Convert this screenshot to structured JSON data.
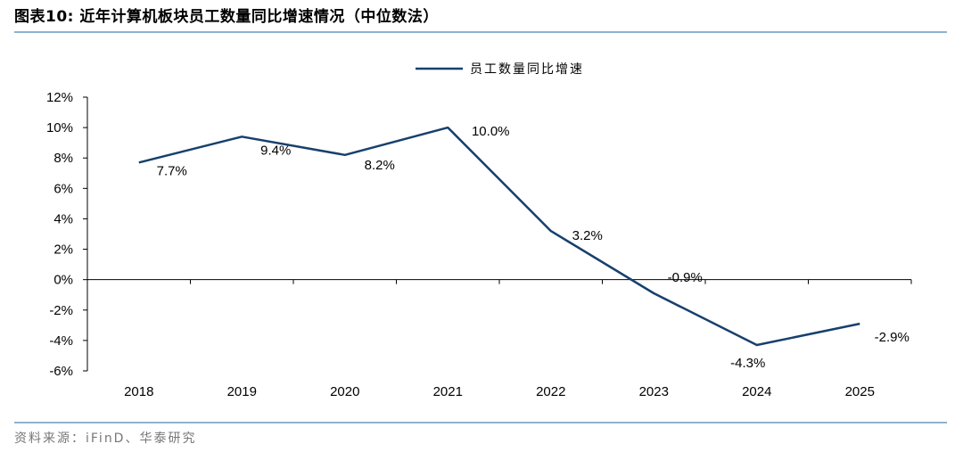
{
  "header": {
    "title": "图表10:  近年计算机板块员工数量同比增速情况（中位数法）"
  },
  "footer": {
    "source": "资料来源：iFinD、华泰研究"
  },
  "colors": {
    "line": "#17406d",
    "rule": "#8db3cf",
    "axis": "#000000"
  },
  "chart_data": {
    "type": "line",
    "title": "",
    "xlabel": "",
    "ylabel": "",
    "categories": [
      "2018",
      "2019",
      "2020",
      "2021",
      "2022",
      "2023",
      "2024",
      "2025"
    ],
    "series": [
      {
        "name": "员工数量同比增速",
        "values": [
          7.7,
          9.4,
          8.2,
          10.0,
          3.2,
          -0.9,
          -4.3,
          -2.9
        ]
      }
    ],
    "data_labels": [
      "7.7%",
      "9.4%",
      "8.2%",
      "10.0%",
      "3.2%",
      "-0.9%",
      "-4.3%",
      "-2.9%"
    ],
    "ylim": [
      -6,
      12
    ],
    "yticks": [
      -6,
      -4,
      -2,
      0,
      2,
      4,
      6,
      8,
      10,
      12
    ],
    "ytick_labels": [
      "-6%",
      "-4%",
      "-2%",
      "0%",
      "2%",
      "4%",
      "6%",
      "8%",
      "10%",
      "12%"
    ],
    "grid": false,
    "legend_position": "top-center"
  }
}
